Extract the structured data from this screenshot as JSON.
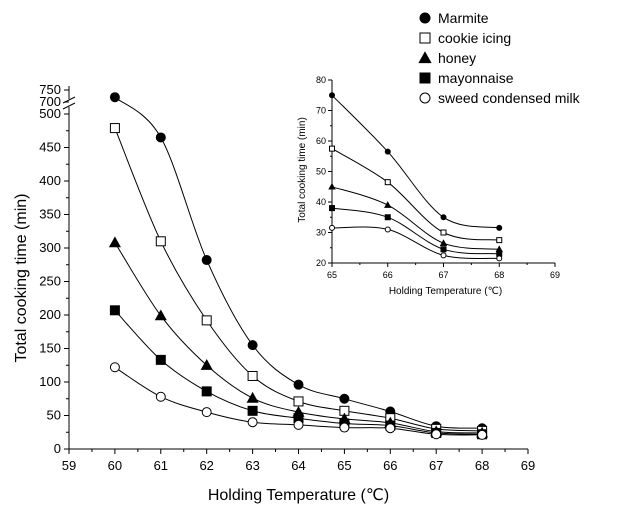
{
  "chart_data": [
    {
      "type": "line",
      "xlabel": "Holding Temperature (℃)",
      "ylabel": "Total cooking time (min)",
      "xlim": [
        59,
        69
      ],
      "ylim": [
        0,
        500
      ],
      "ybreak": {
        "from": 500,
        "to": 700,
        "upper_ticks": [
          700,
          750
        ]
      },
      "x": [
        60,
        61,
        62,
        63,
        64,
        65,
        66,
        67,
        68
      ],
      "xticks": [
        59,
        60,
        61,
        62,
        63,
        64,
        65,
        66,
        67,
        68,
        69
      ],
      "yticks": [
        0,
        50,
        100,
        150,
        200,
        250,
        300,
        350,
        400,
        450,
        500
      ],
      "legend_position": "top-right",
      "series": [
        {
          "name": "Marmite",
          "marker": "filled-circle",
          "values": [
            720,
            465,
            282,
            155,
            96,
            75,
            56,
            34,
            31
          ]
        },
        {
          "name": "cookie icing",
          "marker": "open-square",
          "values": [
            479,
            310,
            192,
            109,
            71,
            57,
            46,
            30,
            27
          ]
        },
        {
          "name": "honey",
          "marker": "filled-triangle",
          "values": [
            308,
            199,
            125,
            76,
            55,
            45,
            39,
            26,
            24
          ]
        },
        {
          "name": "mayonnaise",
          "marker": "filled-square",
          "values": [
            207,
            133,
            86,
            57,
            46,
            38,
            35,
            24,
            22
          ]
        },
        {
          "name": "sweed condensed milk",
          "marker": "open-circle",
          "values": [
            122,
            78,
            55,
            40,
            36,
            32,
            31,
            22,
            21
          ]
        }
      ]
    },
    {
      "type": "line",
      "xlabel": "Holding Temperature (℃)",
      "ylabel": "Total cooking time (min)",
      "xlim": [
        65,
        69
      ],
      "ylim": [
        20,
        80
      ],
      "x": [
        65,
        66,
        67,
        68
      ],
      "xticks": [
        65,
        66,
        67,
        68,
        69
      ],
      "yticks": [
        20,
        30,
        40,
        50,
        60,
        70,
        80
      ],
      "series": [
        {
          "name": "Marmite",
          "marker": "filled-circle",
          "values": [
            75,
            56.5,
            35,
            31.5
          ]
        },
        {
          "name": "cookie icing",
          "marker": "open-square",
          "values": [
            57.5,
            46.5,
            30,
            27.5
          ]
        },
        {
          "name": "honey",
          "marker": "filled-triangle",
          "values": [
            45,
            39,
            26.5,
            24.5
          ]
        },
        {
          "name": "mayonnaise",
          "marker": "filled-square",
          "values": [
            38,
            35,
            24.5,
            23
          ]
        },
        {
          "name": "sweed condensed milk",
          "marker": "open-circle",
          "values": [
            31.5,
            31,
            22.5,
            21.5
          ]
        }
      ]
    }
  ]
}
